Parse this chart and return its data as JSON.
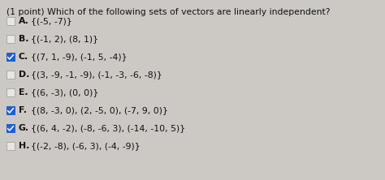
{
  "title": "(1 point) Which of the following sets of vectors are linearly independent?",
  "options": [
    {
      "label": "A.",
      "text": "{(-5, -7)}",
      "checked": false
    },
    {
      "label": "B.",
      "text": "{(-1, 2), (8, 1)}",
      "checked": false
    },
    {
      "label": "C.",
      "text": "{(7, 1, -9), (-1, 5, -4)}",
      "checked": true
    },
    {
      "label": "D.",
      "text": "{(3, -9, -1, -9), (-1, -3, -6, -8)}",
      "checked": false
    },
    {
      "label": "E.",
      "text": "{(6, -3), (0, 0)}",
      "checked": false
    },
    {
      "label": "F.",
      "text": "{(8, -3, 0), (2, -5, 0), (-7, 9, 0)}",
      "checked": true
    },
    {
      "label": "G.",
      "text": "{(6, 4, -2), (-8, -6, 3), (-14, -10, 5)}",
      "checked": true
    },
    {
      "label": "H.",
      "text": "{(-2, -8), (-6, 3), (-4, -9)}",
      "checked": false
    }
  ],
  "bg_color": "#ccc9c5",
  "text_color": "#111111",
  "check_fill": "#2060d0",
  "check_border": "#2060d0",
  "box_border": "#aaaaaa",
  "box_fill": "#e8e6e3",
  "title_fontsize": 7.8,
  "option_fontsize": 7.8,
  "label_bold": true
}
